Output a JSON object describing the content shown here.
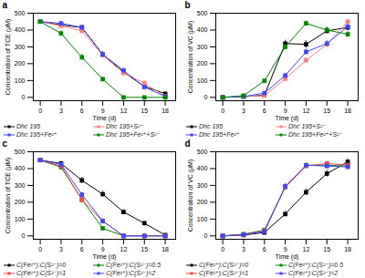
{
  "chart_data": [
    {
      "type": "line",
      "title": "a",
      "xlabel": "Time (d)",
      "ylabel": "Concentration of TCE (μM)",
      "x": [
        0,
        3,
        6,
        9,
        12,
        15,
        18
      ],
      "xlim": [
        -1,
        19.5
      ],
      "xticks": [
        0,
        3,
        6,
        9,
        12,
        15,
        18
      ],
      "ylim": [
        -20,
        500
      ],
      "yticks": [
        0,
        100,
        200,
        300,
        400,
        500
      ],
      "grid": false,
      "legend": "bottom",
      "marker": "square",
      "line_style": "solid",
      "series": [
        {
          "name": "Dhc 195",
          "color": "#000000",
          "values": [
            450,
            430,
            415,
            255,
            150,
            65,
            22
          ],
          "errors": [
            8,
            12,
            12,
            18,
            15,
            10,
            8
          ]
        },
        {
          "name": "Dhc 195+S²⁻",
          "color": "#ff8080",
          "values": [
            450,
            425,
            395,
            250,
            145,
            85,
            5
          ],
          "errors": [
            8,
            10,
            12,
            15,
            12,
            10,
            5
          ]
        },
        {
          "name": "Dhc 195+Fe²⁺",
          "color": "#4444ff",
          "values": [
            450,
            440,
            415,
            255,
            160,
            62,
            5
          ],
          "errors": [
            8,
            10,
            12,
            18,
            14,
            10,
            5
          ]
        },
        {
          "name": "Dhc 195+Fe²⁺+S²⁻",
          "color": "#008800",
          "values": [
            450,
            380,
            238,
            108,
            0,
            0,
            0
          ],
          "errors": [
            8,
            15,
            18,
            12,
            4,
            3,
            3
          ]
        }
      ]
    },
    {
      "type": "line",
      "title": "b",
      "xlabel": "Time (d)",
      "ylabel": "Concentration of VC (μM)",
      "x": [
        0,
        3,
        6,
        9,
        12,
        15,
        18
      ],
      "xlim": [
        -1,
        19.5
      ],
      "xticks": [
        0,
        3,
        6,
        9,
        12,
        15,
        18
      ],
      "ylim": [
        -20,
        500
      ],
      "yticks": [
        0,
        100,
        200,
        300,
        400,
        500
      ],
      "grid": false,
      "legend": "bottom",
      "marker": "square",
      "line_style": "solid",
      "series": [
        {
          "name": "Dhc 195",
          "color": "#000000",
          "values": [
            0,
            5,
            12,
            320,
            315,
            395,
            415
          ],
          "errors": [
            2,
            4,
            6,
            20,
            22,
            18,
            18
          ]
        },
        {
          "name": "Dhc 195+S²⁻",
          "color": "#ff8080",
          "values": [
            0,
            5,
            10,
            110,
            220,
            315,
            450
          ],
          "errors": [
            2,
            3,
            5,
            14,
            18,
            18,
            14
          ]
        },
        {
          "name": "Dhc 195+Fe²⁺",
          "color": "#4444ff",
          "values": [
            0,
            5,
            25,
            130,
            270,
            320,
            420
          ],
          "errors": [
            2,
            4,
            7,
            14,
            18,
            18,
            14
          ]
        },
        {
          "name": "Dhc 195+Fe²⁺+S²⁻",
          "color": "#008800",
          "values": [
            0,
            10,
            98,
            300,
            440,
            400,
            375
          ],
          "errors": [
            2,
            7,
            10,
            18,
            14,
            18,
            18
          ]
        }
      ]
    },
    {
      "type": "line",
      "title": "c",
      "xlabel": "Time (d)",
      "ylabel": "Concentration of TCE (μM)",
      "x": [
        0,
        3,
        6,
        9,
        12,
        15,
        18
      ],
      "xlim": [
        -1,
        19.5
      ],
      "xticks": [
        0,
        3,
        6,
        9,
        12,
        15,
        18
      ],
      "ylim": [
        -20,
        500
      ],
      "yticks": [
        0,
        100,
        200,
        300,
        400,
        500
      ],
      "grid": false,
      "legend": "bottom",
      "marker": "square",
      "line_style": "solid",
      "series": [
        {
          "name": "C(Fe²⁺):C(S²⁻)=0",
          "color": "#000000",
          "values": [
            450,
            430,
            330,
            248,
            142,
            75,
            5
          ],
          "errors": [
            8,
            14,
            18,
            18,
            14,
            10,
            4
          ]
        },
        {
          "name": "C(Fe²⁺):C(S²⁻)=0.5",
          "color": "#008800",
          "values": [
            450,
            408,
            215,
            45,
            0,
            0,
            0
          ],
          "errors": [
            8,
            11,
            16,
            11,
            4,
            3,
            3
          ]
        },
        {
          "name": "C(Fe²⁺):C(S²⁻)=1",
          "color": "#ff4444",
          "values": [
            450,
            415,
            215,
            88,
            0,
            0,
            0
          ],
          "errors": [
            8,
            11,
            14,
            14,
            4,
            3,
            3
          ]
        },
        {
          "name": "C(Fe²⁺):C(S²⁻)=2",
          "color": "#4444ff",
          "values": [
            450,
            425,
            245,
            88,
            0,
            0,
            0
          ],
          "errors": [
            8,
            11,
            14,
            14,
            4,
            3,
            3
          ]
        }
      ]
    },
    {
      "type": "line",
      "title": "d",
      "xlabel": "Time (d)",
      "ylabel": "Concentration of VC (μM)",
      "x": [
        0,
        3,
        6,
        9,
        12,
        15,
        18
      ],
      "xlim": [
        -1,
        19.5
      ],
      "xticks": [
        0,
        3,
        6,
        9,
        12,
        15,
        18
      ],
      "ylim": [
        -20,
        500
      ],
      "yticks": [
        0,
        100,
        200,
        300,
        400,
        500
      ],
      "grid": false,
      "legend": "bottom",
      "marker": "square",
      "line_style": "solid",
      "series": [
        {
          "name": "C(Fe²⁺):C(S²⁻)=0",
          "color": "#000000",
          "values": [
            0,
            5,
            20,
            130,
            260,
            370,
            440
          ],
          "errors": [
            2,
            4,
            7,
            15,
            20,
            20,
            18
          ]
        },
        {
          "name": "C(Fe²⁺):C(S²⁻)=0.5",
          "color": "#008800",
          "values": [
            0,
            10,
            35,
            290,
            420,
            420,
            415
          ],
          "errors": [
            2,
            5,
            9,
            18,
            14,
            14,
            14
          ]
        },
        {
          "name": "C(Fe²⁺):C(S²⁻)=1",
          "color": "#ff4444",
          "values": [
            0,
            8,
            30,
            290,
            415,
            430,
            420
          ],
          "errors": [
            2,
            4,
            9,
            18,
            14,
            14,
            14
          ]
        },
        {
          "name": "C(Fe²⁺):C(S²⁻)=2",
          "color": "#4444ff",
          "values": [
            0,
            8,
            25,
            295,
            420,
            415,
            410
          ],
          "errors": [
            2,
            4,
            7,
            18,
            14,
            14,
            14
          ]
        }
      ]
    }
  ]
}
